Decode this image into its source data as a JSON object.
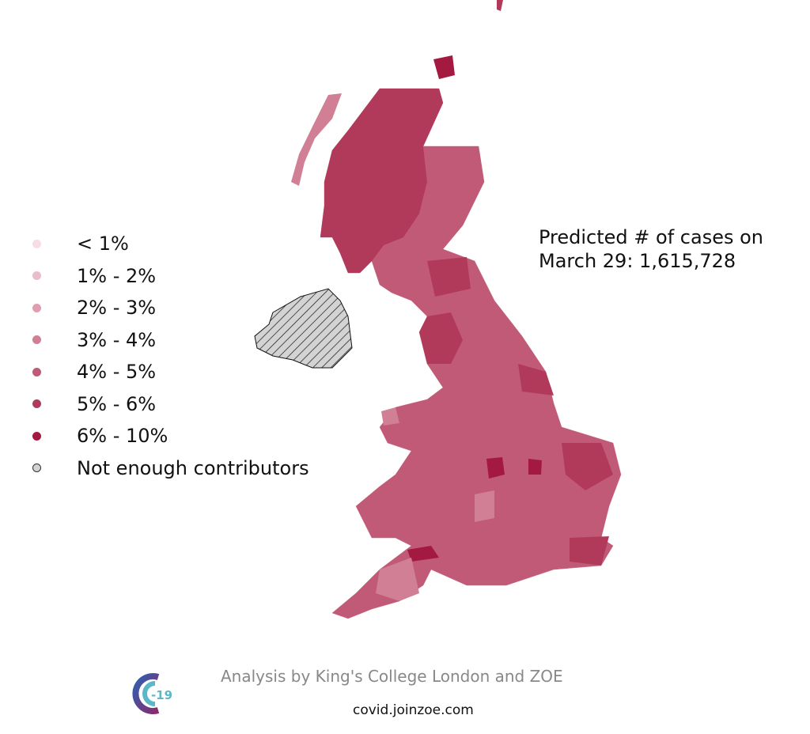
{
  "legend": {
    "items": [
      {
        "label": "< 1%",
        "color": "#f7dce3"
      },
      {
        "label": "1% - 2%",
        "color": "#ebbcc8"
      },
      {
        "label": "2% - 3%",
        "color": "#df9fb0"
      },
      {
        "label": "3% - 4%",
        "color": "#d07f94"
      },
      {
        "label": "4% - 5%",
        "color": "#c05a76"
      },
      {
        "label": "5% - 6%",
        "color": "#b13a5b"
      },
      {
        "label": "6% - 10%",
        "color": "#a3193f"
      },
      {
        "label": "Not enough contributors",
        "color": "#d3d3d3"
      }
    ]
  },
  "annotation": {
    "line1": "Predicted # of cases on",
    "line2": "March 29: 1,615,728"
  },
  "footer": {
    "credit": "Analysis by King's College London and ZOE",
    "url": "covid.joinzoe.com",
    "logo_text": "-19"
  }
}
